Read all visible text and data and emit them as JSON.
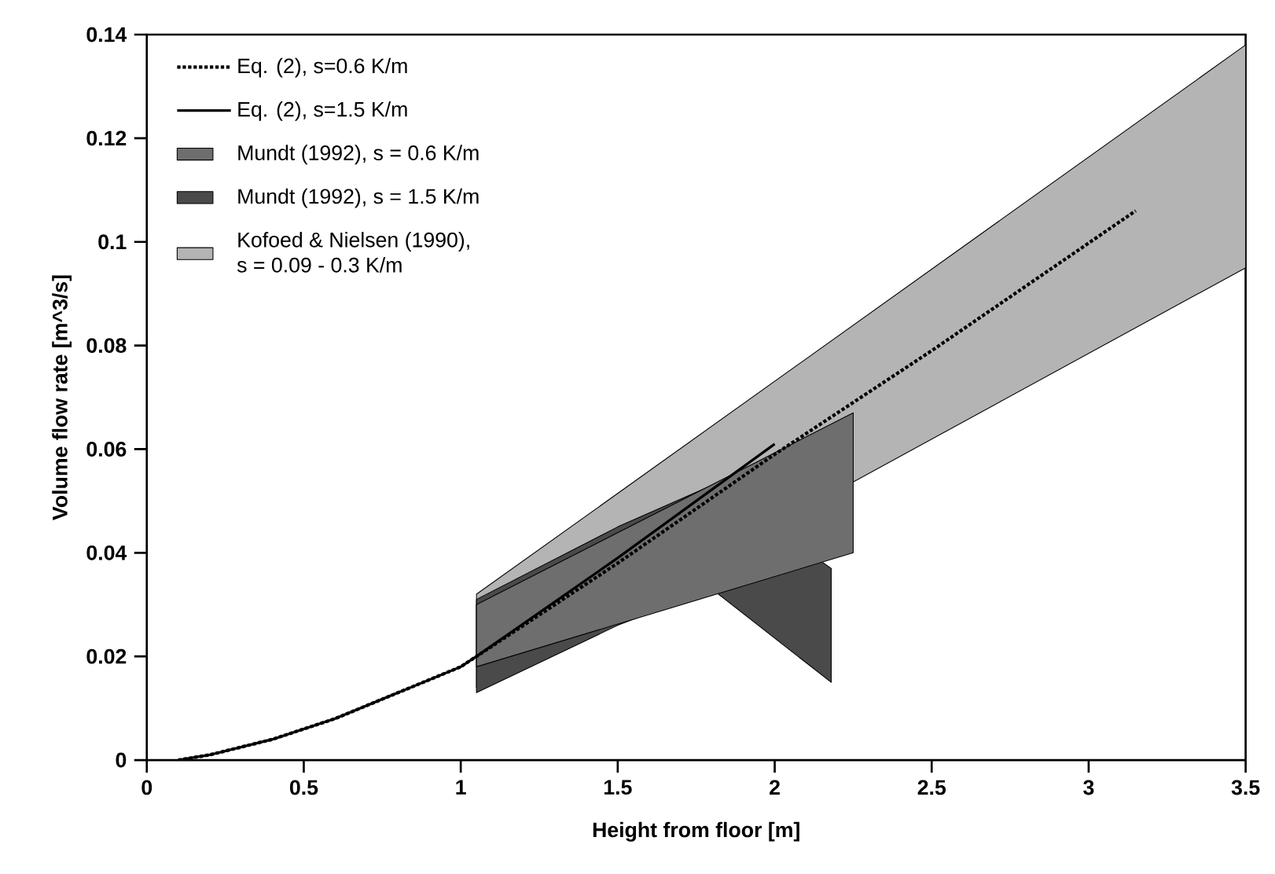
{
  "chart_data": {
    "type": "line",
    "xlabel": "Height from floor [m]",
    "ylabel": "Volume flow rate [m^3/s]",
    "xlim": [
      0,
      3.5
    ],
    "ylim": [
      0,
      0.14
    ],
    "xticks": [
      0,
      0.5,
      1,
      1.5,
      2,
      2.5,
      3,
      3.5
    ],
    "yticks": [
      0,
      0.02,
      0.04,
      0.06,
      0.08,
      0.1,
      0.12,
      0.14
    ],
    "legend": "top left",
    "grid": false,
    "series": [
      {
        "name": "Eq. (2), s=0.6 K/m",
        "line_style": "dotted",
        "color": "#000000",
        "x": [
          0.1,
          0.2,
          0.4,
          0.6,
          0.8,
          1.0,
          1.05,
          1.5,
          2.0,
          2.5,
          3.15
        ],
        "values": [
          0,
          0.001,
          0.004,
          0.008,
          0.013,
          0.018,
          0.02,
          0.038,
          0.059,
          0.079,
          0.106
        ]
      },
      {
        "name": "Eq. (2), s=1.5 K/m",
        "line_style": "solid",
        "color": "#000000",
        "x": [
          0.1,
          0.2,
          0.4,
          0.6,
          0.8,
          1.0,
          1.05,
          1.5,
          2.0
        ],
        "values": [
          0,
          0.001,
          0.004,
          0.008,
          0.013,
          0.018,
          0.02,
          0.039,
          0.061
        ]
      },
      {
        "name": "Mundt (1992), s = 0.6 K/m",
        "type": "area",
        "color": "#6e6e6e",
        "x": [
          1.05,
          2.25
        ],
        "values": [
          null,
          null
        ],
        "lower": [
          0.018,
          0.04
        ],
        "upper": [
          0.03,
          0.067
        ]
      },
      {
        "name": "Mundt (1992), s = 1.5 K/m",
        "type": "area",
        "color": "#4a4a4a",
        "x": [
          1.05,
          1.5,
          1.8,
          2.18
        ],
        "values": [
          null,
          null,
          null,
          null
        ],
        "lower": [
          0.013,
          0.026,
          0.033,
          0.015
        ],
        "upper": [
          0.031,
          0.045,
          0.053,
          0.037
        ]
      },
      {
        "name": "Kofoed & Nielsen (1990),\ns = 0.09 - 0.3 K/m",
        "type": "area",
        "color": "#b4b4b4",
        "x": [
          1.05,
          3.5
        ],
        "values": [
          null,
          null
        ],
        "lower": [
          0.014,
          0.095
        ],
        "upper": [
          0.032,
          0.138
        ]
      }
    ]
  }
}
